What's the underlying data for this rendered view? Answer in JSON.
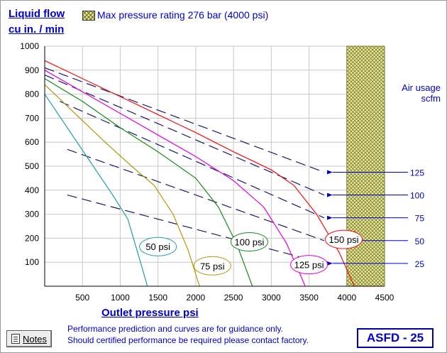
{
  "header": {
    "yaxis_title_line1": "Liquid flow",
    "yaxis_title_line2": "cu in. / min",
    "legend_text": "Max pressure rating 276 bar (4000 psi)"
  },
  "air_usage": {
    "title_line1": "Air usage",
    "title_line2": "scfm"
  },
  "footer": {
    "notes_label": "Notes",
    "line1": "Performance prediction and curves are for guidance only.",
    "line2": "Should certified performance be required please contact factory.",
    "model": "ASFD - 25"
  },
  "colors": {
    "axis_text": "#0000cc",
    "grid": "#c8c8c8",
    "hatch": "#e8e89a"
  },
  "chart_data": {
    "type": "line",
    "title": "",
    "xlabel": "Outlet pressure   psi",
    "ylabel": "Liquid flow cu in. / min",
    "xlim": [
      0,
      4500
    ],
    "ylim": [
      0,
      1000
    ],
    "xticks": [
      500,
      1000,
      1500,
      2000,
      2500,
      3000,
      3500,
      4000,
      4500
    ],
    "yticks": [
      100,
      200,
      300,
      400,
      500,
      600,
      700,
      800,
      900,
      1000
    ],
    "grid": true,
    "max_pressure_region": {
      "from": 4000,
      "to": 4500,
      "label": "Max pressure rating 276 bar (4000 psi)"
    },
    "series": [
      {
        "name": "50 psi",
        "color": "#1f9eaa",
        "x": [
          0,
          300,
          600,
          900,
          1100,
          1250,
          1360
        ],
        "y": [
          800,
          660,
          520,
          380,
          280,
          120,
          0
        ]
      },
      {
        "name": "75 psi",
        "color": "#b09a10",
        "x": [
          0,
          400,
          800,
          1150,
          1450,
          1700,
          1900,
          2050
        ],
        "y": [
          840,
          720,
          600,
          500,
          420,
          300,
          150,
          0
        ]
      },
      {
        "name": "100 psi",
        "color": "#1a8a1a",
        "x": [
          0,
          500,
          1000,
          1500,
          2000,
          2300,
          2550,
          2750
        ],
        "y": [
          865,
          770,
          660,
          560,
          450,
          330,
          170,
          0
        ]
      },
      {
        "name": "125 psi",
        "color": "#e000e0",
        "x": [
          0,
          500,
          1000,
          1500,
          2000,
          2500,
          2900,
          3200,
          3450
        ],
        "y": [
          900,
          810,
          720,
          630,
          540,
          440,
          330,
          180,
          0
        ]
      },
      {
        "name": "150 psi",
        "color": "#ee1010",
        "x": [
          0,
          500,
          1000,
          1500,
          2000,
          2500,
          3000,
          3300,
          3600,
          3900,
          4100
        ],
        "y": [
          940,
          865,
          790,
          715,
          640,
          560,
          485,
          420,
          300,
          140,
          0
        ]
      }
    ],
    "air_usage_lines": [
      {
        "scfm": "125",
        "x": [
          0,
          3700
        ],
        "y": [
          910,
          475
        ]
      },
      {
        "scfm": "100",
        "x": [
          0,
          3700
        ],
        "y": [
          880,
          380
        ]
      },
      {
        "scfm": "75",
        "x": [
          200,
          3700
        ],
        "y": [
          770,
          285
        ]
      },
      {
        "scfm": "50",
        "x": [
          300,
          3700
        ],
        "y": [
          570,
          190
        ]
      },
      {
        "scfm": "25",
        "x": [
          300,
          3700
        ],
        "y": [
          380,
          95
        ]
      }
    ],
    "annotations": [
      {
        "text": "50 psi",
        "x": 1500,
        "y": 165
      },
      {
        "text": "75 psi",
        "x": 2220,
        "y": 85
      },
      {
        "text": "100 psi",
        "x": 2710,
        "y": 185
      },
      {
        "text": "125 psi",
        "x": 3500,
        "y": 90
      },
      {
        "text": "150 psi",
        "x": 3960,
        "y": 195
      }
    ]
  }
}
